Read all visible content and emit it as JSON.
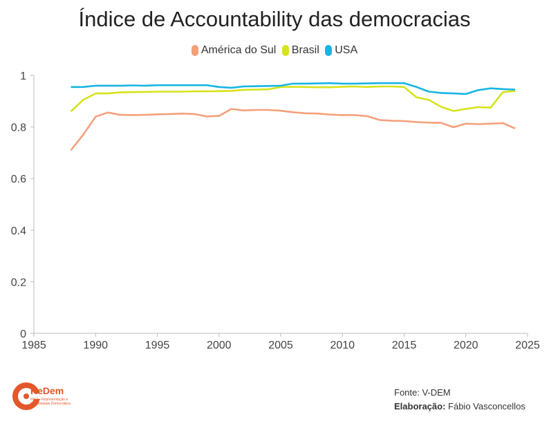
{
  "footer": {
    "source": "Fonte: V-DEM",
    "credit_label": "Elaboração:",
    "credit_name": " Fábio Vasconcellos",
    "logo_name": "ReDem",
    "logo_sub": "INCT • Representação e Legitimidade Democrática"
  },
  "chart_data": {
    "type": "line",
    "title": "Índice de Accountability das democracias",
    "xlabel": "",
    "ylabel": "",
    "xlim": [
      1985,
      2025
    ],
    "ylim": [
      0,
      1
    ],
    "x_ticks": [
      1985,
      1990,
      1995,
      2000,
      2005,
      2010,
      2015,
      2020,
      2025
    ],
    "x_tick_labels": [
      "1985",
      "1990",
      "1995",
      "2000",
      "2005",
      "2010",
      "2015",
      "2020",
      "2025"
    ],
    "y_ticks": [
      0,
      0.2,
      0.4,
      0.6,
      0.8,
      1
    ],
    "y_tick_labels": [
      "0",
      "0.2",
      "0.4",
      "0.6",
      "0.8",
      "1"
    ],
    "legend_position": "top-center",
    "grid": false,
    "x": [
      1988,
      1989,
      1990,
      1991,
      1992,
      1993,
      1994,
      1995,
      1996,
      1997,
      1998,
      1999,
      2000,
      2001,
      2002,
      2003,
      2004,
      2005,
      2006,
      2007,
      2008,
      2009,
      2010,
      2011,
      2012,
      2013,
      2014,
      2015,
      2016,
      2017,
      2018,
      2019,
      2020,
      2021,
      2022,
      2023,
      2024
    ],
    "series": [
      {
        "name": "América do Sul",
        "color": "#f4a07a",
        "values": [
          0.71,
          0.77,
          0.84,
          0.856,
          0.847,
          0.846,
          0.847,
          0.849,
          0.85,
          0.852,
          0.85,
          0.841,
          0.843,
          0.87,
          0.864,
          0.866,
          0.866,
          0.863,
          0.857,
          0.853,
          0.852,
          0.848,
          0.846,
          0.846,
          0.842,
          0.827,
          0.824,
          0.823,
          0.819,
          0.817,
          0.816,
          0.799,
          0.813,
          0.811,
          0.813,
          0.815,
          0.794
        ]
      },
      {
        "name": "Brasil",
        "color": "#d5e31a",
        "values": [
          0.86,
          0.905,
          0.93,
          0.93,
          0.934,
          0.935,
          0.936,
          0.937,
          0.937,
          0.937,
          0.938,
          0.938,
          0.939,
          0.94,
          0.944,
          0.945,
          0.946,
          0.955,
          0.956,
          0.955,
          0.954,
          0.954,
          0.956,
          0.957,
          0.955,
          0.957,
          0.957,
          0.955,
          0.915,
          0.905,
          0.878,
          0.862,
          0.87,
          0.877,
          0.875,
          0.935,
          0.94
        ]
      },
      {
        "name": "USA",
        "color": "#17b5e2",
        "values": [
          0.955,
          0.955,
          0.96,
          0.96,
          0.96,
          0.961,
          0.96,
          0.962,
          0.962,
          0.962,
          0.962,
          0.962,
          0.955,
          0.952,
          0.957,
          0.958,
          0.959,
          0.96,
          0.968,
          0.968,
          0.969,
          0.97,
          0.968,
          0.968,
          0.969,
          0.97,
          0.97,
          0.97,
          0.955,
          0.937,
          0.932,
          0.93,
          0.928,
          0.943,
          0.95,
          0.947,
          0.945
        ]
      }
    ]
  }
}
